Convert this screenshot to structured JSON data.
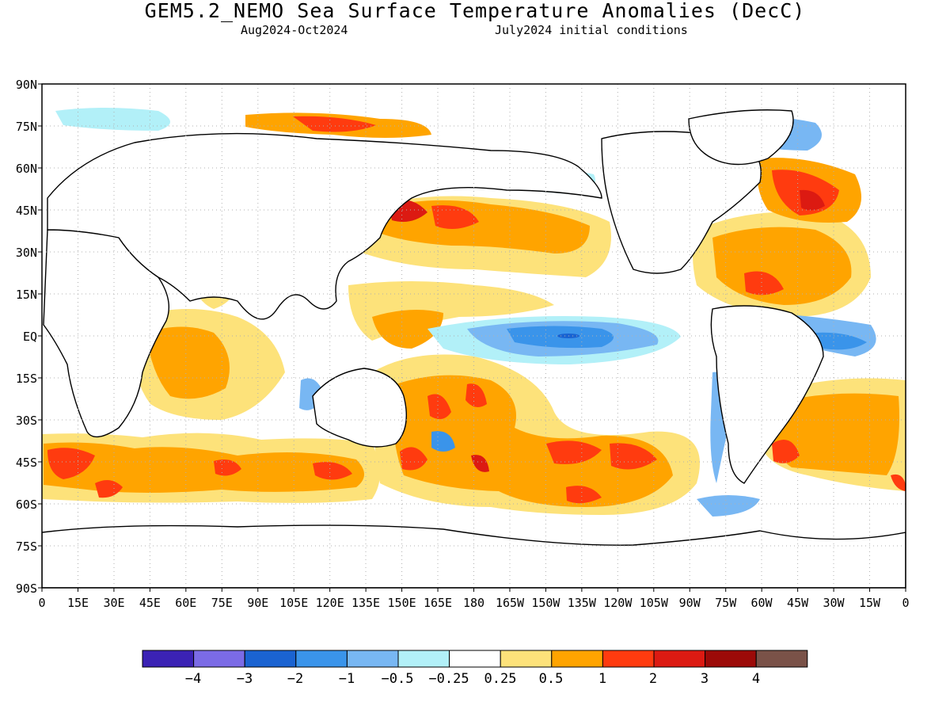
{
  "title": "GEM5.2_NEMO Sea Surface Temperature Anomalies (DecC)",
  "subtitle_left": "Aug2024-Oct2024",
  "subtitle_right": "July2024 initial conditions",
  "lat_labels": [
    "90N",
    "75N",
    "60N",
    "45N",
    "30N",
    "15N",
    "EQ",
    "15S",
    "30S",
    "45S",
    "60S",
    "75S",
    "90S"
  ],
  "lon_labels": [
    "0",
    "15E",
    "30E",
    "45E",
    "60E",
    "75E",
    "90E",
    "105E",
    "120E",
    "135E",
    "150E",
    "165E",
    "180",
    "165W",
    "150W",
    "135W",
    "120W",
    "105W",
    "90W",
    "75W",
    "60W",
    "45W",
    "30W",
    "15W",
    "0"
  ],
  "legend": {
    "labels": [
      "-4",
      "-3",
      "-2",
      "-1",
      "-0.5",
      "-0.25",
      "0.25",
      "0.5",
      "1",
      "2",
      "3",
      "4"
    ],
    "colors": [
      "#3b22b5",
      "#7b6be6",
      "#1a63d1",
      "#3a94ea",
      "#78b7f3",
      "#b2f0f8",
      "#ffffff",
      "#fde27a",
      "#ffa400",
      "#ff3b0f",
      "#dc1a12",
      "#9c0a08",
      "#7a5248"
    ]
  },
  "colors": {
    "frame": "#000000",
    "grid": "#b0b0b0",
    "land_outline": "#000000"
  }
}
